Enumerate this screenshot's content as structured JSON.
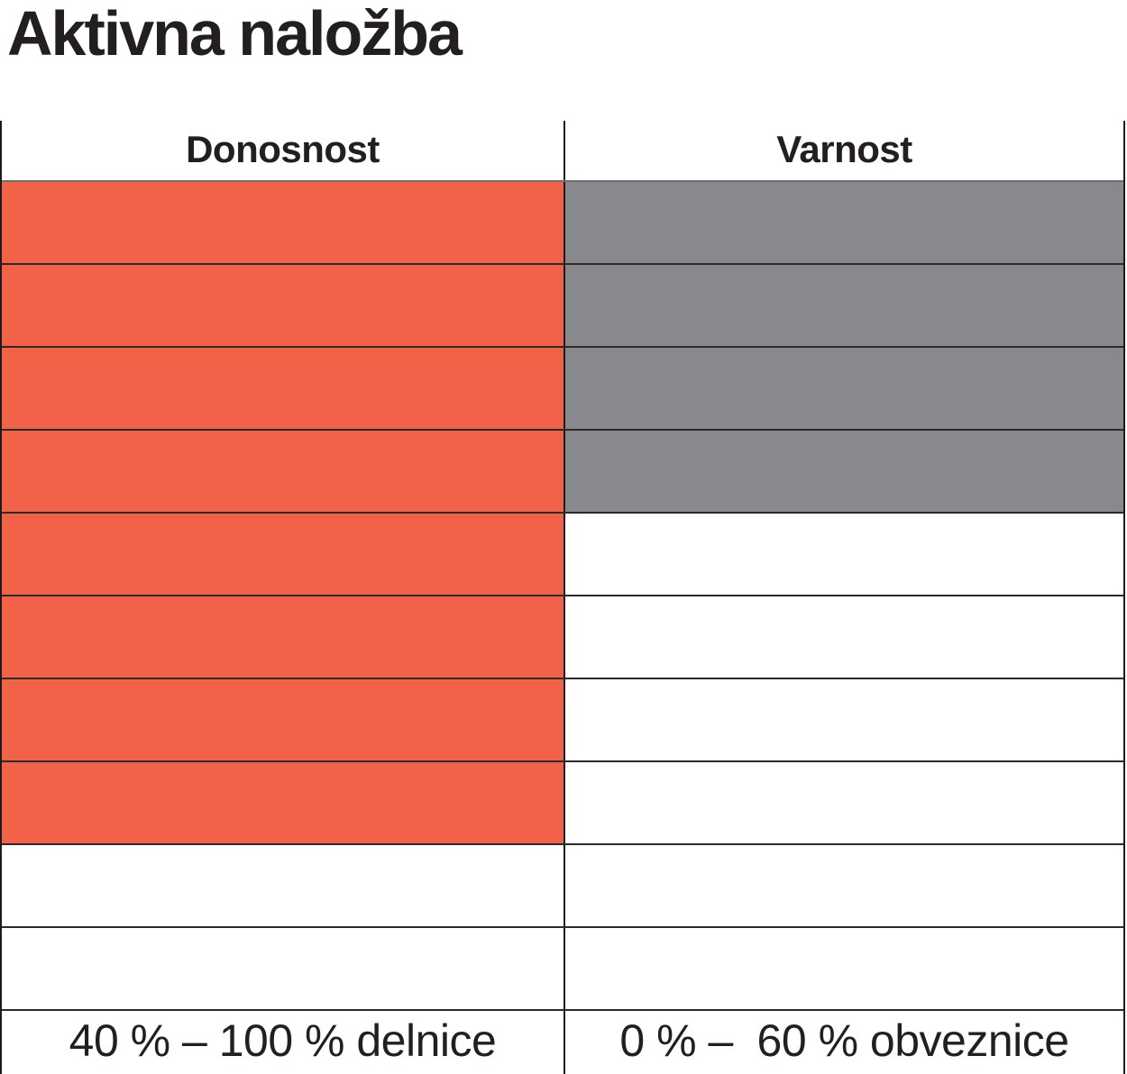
{
  "title": "Aktivna naložba",
  "table": {
    "total_rows": 10,
    "columns": [
      {
        "key": "donosnost",
        "header": "Donosnost",
        "filled_rows": 8,
        "fill_color": "#f26249",
        "range_label": "40 % – 100 % delnice"
      },
      {
        "key": "varnost",
        "header": "Varnost",
        "filled_rows": 4,
        "fill_color": "#87898c",
        "range_label": "0 % –  60 % obveznice"
      }
    ]
  },
  "chart_data": {
    "type": "bar",
    "title": "Aktivna naložba",
    "categories": [
      "Donosnost",
      "Varnost"
    ],
    "values": [
      8,
      4
    ],
    "scale": {
      "min": 0,
      "max": 10,
      "segments": 10
    },
    "fill_direction": "top-down",
    "colors": [
      "#f26249",
      "#87898c"
    ],
    "annotations": [
      "40 % – 100 % delnice",
      "0 % – 60 % obveznice"
    ],
    "legend_position": "none",
    "grid": true
  }
}
